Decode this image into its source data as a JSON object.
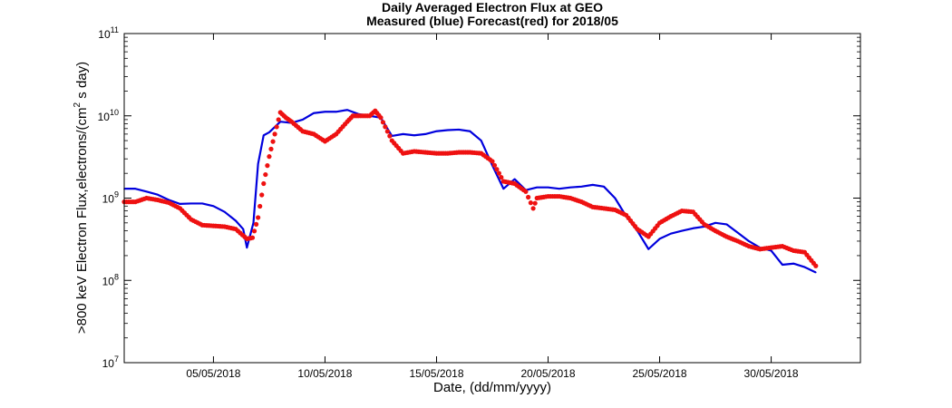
{
  "chart_data": {
    "type": "line",
    "title": "Daily Averaged Electron Flux at GEO",
    "subtitle": "Measured (blue) Forecast(red) for 2018/05",
    "xlabel": "Date, (dd/mm/yyyy)",
    "ylabel_main": ">800 keV Electron Flux,electrons/(cm",
    "ylabel_sup": "2",
    "ylabel_tail": " s day)",
    "y_scale": "log",
    "ylim": [
      10000000,
      100000000000
    ],
    "xlim": [
      "2018-05-01",
      "2018-06-03"
    ],
    "grid": false,
    "x_ticks": [
      {
        "date": "2018-05-05",
        "label": "05/05/2018"
      },
      {
        "date": "2018-05-10",
        "label": "10/05/2018"
      },
      {
        "date": "2018-05-15",
        "label": "15/05/2018"
      },
      {
        "date": "2018-05-20",
        "label": "20/05/2018"
      },
      {
        "date": "2018-05-25",
        "label": "25/05/2018"
      },
      {
        "date": "2018-05-30",
        "label": "30/05/2018"
      }
    ],
    "y_ticks": [
      {
        "value": 10000000,
        "base": "10",
        "exp": "7"
      },
      {
        "value": 100000000,
        "base": "10",
        "exp": "8"
      },
      {
        "value": 1000000000,
        "base": "10",
        "exp": "9"
      },
      {
        "value": 10000000000,
        "base": "10",
        "exp": "10"
      },
      {
        "value": 100000000000,
        "base": "10",
        "exp": "11"
      }
    ],
    "colors": {
      "measured": "#0000dd",
      "forecast": "#ee1111",
      "axis": "#000000"
    },
    "series": [
      {
        "style": "line",
        "x": [
          "2018-05-01",
          "2018-05-01T12",
          "2018-05-02",
          "2018-05-02T12",
          "2018-05-03",
          "2018-05-03T12",
          "2018-05-04",
          "2018-05-04T12",
          "2018-05-05",
          "2018-05-05T12",
          "2018-05-06",
          "2018-05-06T08",
          "2018-05-06T12",
          "2018-05-06T19",
          "2018-05-07",
          "2018-05-07T06",
          "2018-05-07T12",
          "2018-05-08",
          "2018-05-08T12",
          "2018-05-09",
          "2018-05-09T12",
          "2018-05-10",
          "2018-05-10T12",
          "2018-05-11",
          "2018-05-11T12",
          "2018-05-12",
          "2018-05-12T12",
          "2018-05-13",
          "2018-05-13T12",
          "2018-05-14",
          "2018-05-14T12",
          "2018-05-15",
          "2018-05-15T12",
          "2018-05-16",
          "2018-05-16T12",
          "2018-05-17",
          "2018-05-17T12",
          "2018-05-18",
          "2018-05-18T12",
          "2018-05-19",
          "2018-05-19T12",
          "2018-05-20",
          "2018-05-20T12",
          "2018-05-21",
          "2018-05-21T12",
          "2018-05-22",
          "2018-05-22T12",
          "2018-05-23",
          "2018-05-23T12",
          "2018-05-24",
          "2018-05-24T12",
          "2018-05-25",
          "2018-05-25T12",
          "2018-05-26",
          "2018-05-26T12",
          "2018-05-27",
          "2018-05-27T12",
          "2018-05-28",
          "2018-05-28T12",
          "2018-05-29",
          "2018-05-29T12",
          "2018-05-30",
          "2018-05-30T12",
          "2018-05-31",
          "2018-05-31T12",
          "2018-06-01"
        ],
        "values": [
          1300000000.0,
          1300000000.0,
          1200000000.0,
          1100000000.0,
          950000000.0,
          850000000.0,
          860000000.0,
          860000000.0,
          800000000.0,
          680000000.0,
          530000000.0,
          420000000.0,
          250000000.0,
          500000000.0,
          2600000000.0,
          5800000000.0,
          6300000000.0,
          8500000000.0,
          8200000000.0,
          9000000000.0,
          10800000000.0,
          11200000000.0,
          11200000000.0,
          11800000000.0,
          10500000000.0,
          10000000000.0,
          9500000000.0,
          5700000000.0,
          6000000000.0,
          5800000000.0,
          6000000000.0,
          6500000000.0,
          6700000000.0,
          6800000000.0,
          6500000000.0,
          5000000000.0,
          2500000000.0,
          1300000000.0,
          1700000000.0,
          1250000000.0,
          1350000000.0,
          1350000000.0,
          1300000000.0,
          1350000000.0,
          1380000000.0,
          1450000000.0,
          1380000000.0,
          1000000000.0,
          600000000.0,
          400000000.0,
          240000000.0,
          320000000.0,
          370000000.0,
          400000000.0,
          430000000.0,
          450000000.0,
          500000000.0,
          480000000.0,
          380000000.0,
          300000000.0,
          250000000.0,
          230000000.0,
          155000000.0,
          160000000.0,
          145000000.0,
          125000000.0
        ]
      },
      {
        "style": "markers",
        "x": [
          "2018-05-01",
          "2018-05-01T12",
          "2018-05-02",
          "2018-05-02T12",
          "2018-05-03",
          "2018-05-03T12",
          "2018-05-04",
          "2018-05-04T12",
          "2018-05-05",
          "2018-05-05T12",
          "2018-05-06",
          "2018-05-06T12",
          "2018-05-06T18",
          "2018-05-07",
          "2018-05-07T06",
          "2018-05-07T12",
          "2018-05-07T18",
          "2018-05-08",
          "2018-05-08T06",
          "2018-05-08T12",
          "2018-05-09",
          "2018-05-09T12",
          "2018-05-10",
          "2018-05-10T12",
          "2018-05-11",
          "2018-05-11T06",
          "2018-05-11T12",
          "2018-05-12",
          "2018-05-12T06",
          "2018-05-12T12",
          "2018-05-13",
          "2018-05-13T12",
          "2018-05-14",
          "2018-05-14T12",
          "2018-05-15",
          "2018-05-15T12",
          "2018-05-16",
          "2018-05-16T12",
          "2018-05-17",
          "2018-05-17T12",
          "2018-05-18",
          "2018-05-18T12",
          "2018-05-19",
          "2018-05-19T08",
          "2018-05-19T12",
          "2018-05-20",
          "2018-05-20T12",
          "2018-05-21",
          "2018-05-21T12",
          "2018-05-22",
          "2018-05-22T12",
          "2018-05-23",
          "2018-05-23T12",
          "2018-05-24",
          "2018-05-24T12",
          "2018-05-25",
          "2018-05-25T12",
          "2018-05-26",
          "2018-05-26T12",
          "2018-05-27",
          "2018-05-27T12",
          "2018-05-28",
          "2018-05-28T12",
          "2018-05-29",
          "2018-05-29T12",
          "2018-05-30",
          "2018-05-30T12",
          "2018-05-31",
          "2018-05-31T12",
          "2018-06-01"
        ],
        "values": [
          900000000.0,
          900000000.0,
          1000000000.0,
          950000000.0,
          880000000.0,
          750000000.0,
          550000000.0,
          470000000.0,
          460000000.0,
          450000000.0,
          420000000.0,
          320000000.0,
          330000000.0,
          580000000.0,
          1500000000.0,
          3200000000.0,
          6000000000.0,
          11000000000.0,
          9500000000.0,
          8500000000.0,
          6500000000.0,
          6000000000.0,
          4900000000.0,
          6000000000.0,
          8500000000.0,
          10000000000.0,
          10000000000.0,
          10000000000.0,
          11500000000.0,
          9500000000.0,
          5000000000.0,
          3500000000.0,
          3700000000.0,
          3600000000.0,
          3500000000.0,
          3500000000.0,
          3600000000.0,
          3600000000.0,
          3500000000.0,
          2800000000.0,
          1600000000.0,
          1500000000.0,
          1200000000.0,
          750000000.0,
          1000000000.0,
          1050000000.0,
          1050000000.0,
          1000000000.0,
          900000000.0,
          780000000.0,
          750000000.0,
          720000000.0,
          620000000.0,
          420000000.0,
          340000000.0,
          500000000.0,
          600000000.0,
          700000000.0,
          680000000.0,
          480000000.0,
          400000000.0,
          340000000.0,
          300000000.0,
          260000000.0,
          240000000.0,
          250000000.0,
          260000000.0,
          230000000.0,
          220000000.0,
          150000000.0
        ]
      }
    ]
  }
}
